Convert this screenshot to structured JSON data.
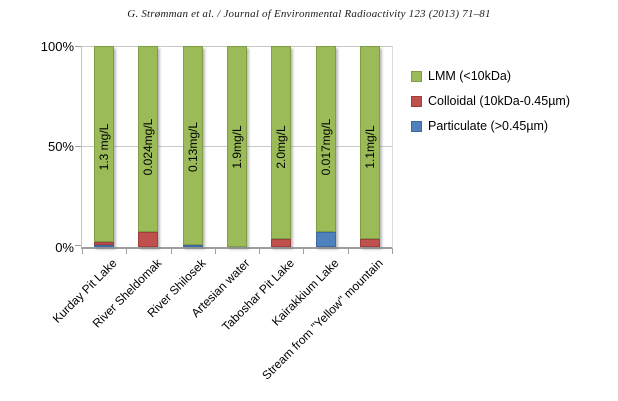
{
  "header": {
    "title": "G. Strømman et al. / Journal of Environmental Radioactivity 123 (2013) 71–81"
  },
  "chart_data": {
    "type": "bar",
    "stacked": true,
    "percent_stacked": true,
    "title": "",
    "xlabel": "",
    "ylabel": "",
    "ylim": [
      0,
      100
    ],
    "yticks": [
      "100%",
      "50%",
      "0%"
    ],
    "grid": "horizontal line at 50% and 100%",
    "legend_position": "right",
    "categories": [
      "Kurday Pit Lake",
      "River Sheldomak",
      "River Shilosek",
      "Artesian water",
      "Taboshar Pit Lake",
      "Kairakkium Lake",
      "Stream from \"Yellow\" mountain"
    ],
    "bar_value_labels": [
      "1.3 mg/L",
      "0.024mg/L",
      "0.13mg/L",
      "1.9mg/L",
      "2.0mg/L",
      "0.017mg/L",
      "1.1mg/L"
    ],
    "series": [
      {
        "key": "lmm",
        "name": "LMM (<10kDa)",
        "color": "#9BBB59",
        "border": "#7E9D45",
        "values": [
          97.5,
          92.5,
          99,
          100,
          96,
          92.5,
          96
        ]
      },
      {
        "key": "colloidal",
        "name": "Colloidal (10kDa-0.45µm)",
        "color": "#C0504D",
        "border": "#9E3F3C",
        "values": [
          1.5,
          7.5,
          0,
          0,
          4,
          0,
          4
        ]
      },
      {
        "key": "particulate",
        "name": "Particulate (>0.45µm)",
        "color": "#4F81BD",
        "border": "#3E68A0",
        "values": [
          1,
          0,
          1,
          0,
          0,
          7.5,
          0
        ]
      }
    ]
  }
}
